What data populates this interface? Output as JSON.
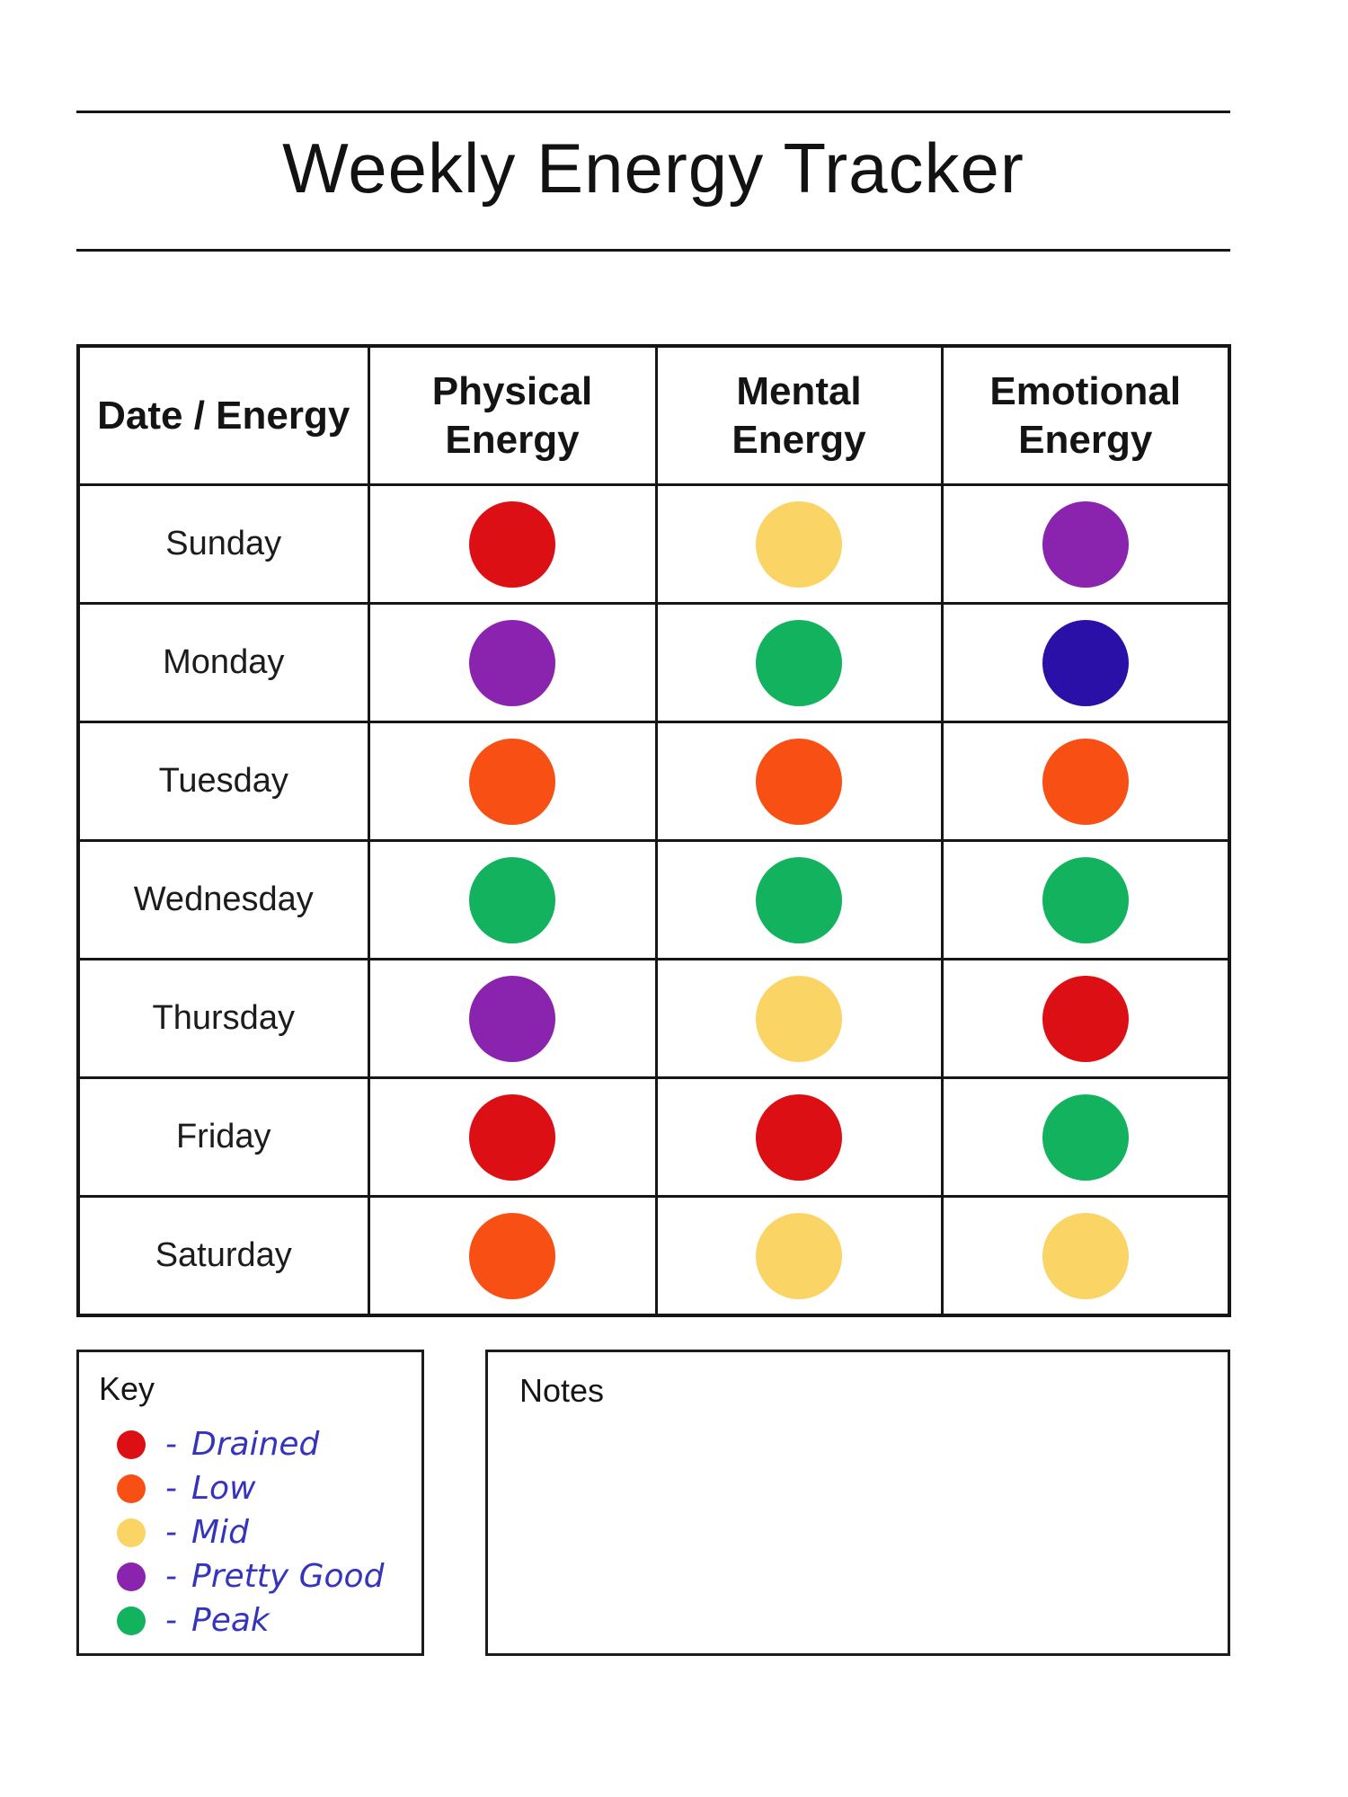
{
  "title": "Weekly Energy Tracker",
  "palette": {
    "red": "#DC1014",
    "orange": "#F85014",
    "yellow": "#FAD464",
    "purple": "#8A23AE",
    "green": "#13B25F",
    "deep_blue": "#2A10A6"
  },
  "table": {
    "columns": [
      "Date / Energy",
      "Physical\nEnergy",
      "Mental\nEnergy",
      "Emotional\nEnergy"
    ],
    "rows": [
      {
        "day": "Sunday",
        "physical": "red",
        "mental": "yellow",
        "emotional": "purple"
      },
      {
        "day": "Monday",
        "physical": "purple",
        "mental": "green",
        "emotional": "deep_blue"
      },
      {
        "day": "Tuesday",
        "physical": "orange",
        "mental": "orange",
        "emotional": "orange"
      },
      {
        "day": "Wednesday",
        "physical": "green",
        "mental": "green",
        "emotional": "green"
      },
      {
        "day": "Thursday",
        "physical": "purple",
        "mental": "yellow",
        "emotional": "red"
      },
      {
        "day": "Friday",
        "physical": "red",
        "mental": "red",
        "emotional": "green"
      },
      {
        "day": "Saturday",
        "physical": "orange",
        "mental": "yellow",
        "emotional": "yellow"
      }
    ]
  },
  "key": {
    "title": "Key",
    "dash": "-",
    "items": [
      {
        "color": "red",
        "label": "Drained"
      },
      {
        "color": "orange",
        "label": "Low"
      },
      {
        "color": "yellow",
        "label": "Mid"
      },
      {
        "color": "purple",
        "label": "Pretty Good"
      },
      {
        "color": "green",
        "label": "Peak"
      }
    ]
  },
  "notes": {
    "title": "Notes"
  }
}
